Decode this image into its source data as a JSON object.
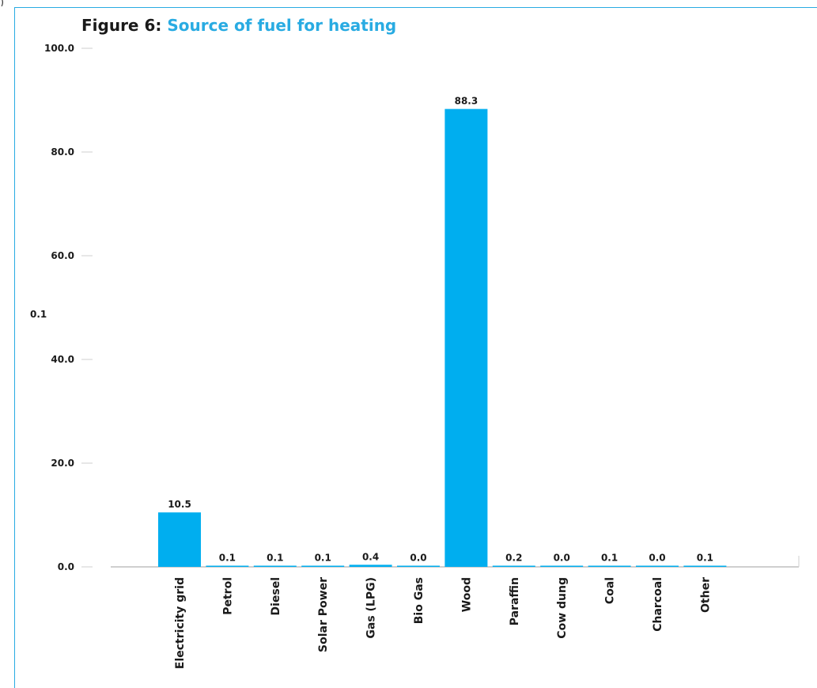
{
  "header_fragment": ")",
  "title": {
    "prefix": "Figure 6:",
    "text": "Source of fuel for heating"
  },
  "colors": {
    "bar": "#00aeef",
    "frame": "#29abe2",
    "axis": "#cfcfcf"
  },
  "chart_data": {
    "type": "bar",
    "title": "Figure 6: Source of fuel for heating",
    "xlabel": "",
    "ylabel": "0.1",
    "categories": [
      "Electricity grid",
      "Petrol",
      "Diesel",
      "Solar Power",
      "Gas (LPG)",
      "Bio Gas",
      "Wood",
      "Paraffin",
      "Cow dung",
      "Coal",
      "Charcoal",
      "Other"
    ],
    "values": [
      10.5,
      0.1,
      0.1,
      0.1,
      0.4,
      0.0,
      88.3,
      0.2,
      0.0,
      0.1,
      0.0,
      0.1
    ],
    "value_labels": [
      "10.5",
      "0.1",
      "0.1",
      "0.1",
      "0.4",
      "0.0",
      "88.3",
      "0.2",
      "0.0",
      "0.1",
      "0.0",
      "0.1"
    ],
    "ylim": [
      0,
      100
    ],
    "yticks": [
      "0.0",
      "20.0",
      "40.0",
      "60.0",
      "80.0",
      "100.0"
    ],
    "grid": false,
    "legend": "none"
  }
}
